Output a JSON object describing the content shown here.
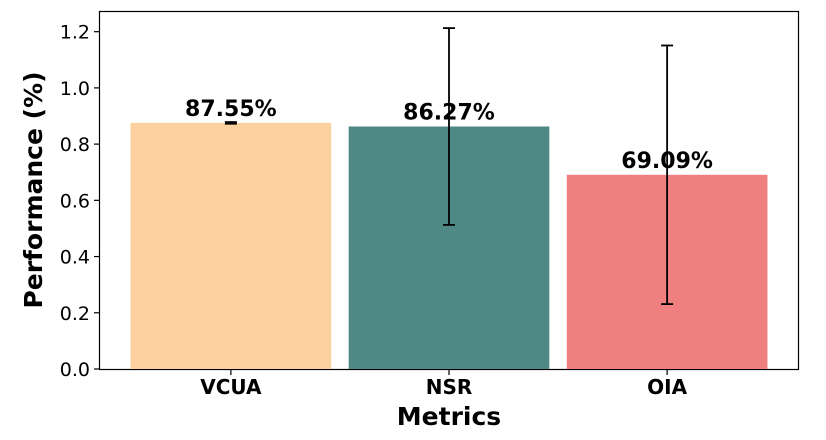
{
  "chart_data": {
    "type": "bar",
    "xlabel": "Metrics",
    "ylabel": "Performance (%)",
    "categories": [
      "VCUA",
      "NSR",
      "OIA"
    ],
    "values": [
      0.8755,
      0.8627,
      0.6909
    ],
    "error": [
      0.003,
      0.35,
      0.46
    ],
    "data_labels": [
      "87.55%",
      "86.27%",
      "69.09%"
    ],
    "colors": [
      "#FDD09F",
      "#4E8986",
      "#F08080"
    ],
    "ylim": [
      0,
      1.27
    ],
    "yticks": [
      0.0,
      0.2,
      0.4,
      0.6,
      0.8,
      1.0,
      1.2
    ],
    "ytick_labels": [
      "0.0",
      "0.2",
      "0.4",
      "0.6",
      "0.8",
      "1.0",
      "1.2"
    ],
    "grid": false,
    "legend": false
  }
}
